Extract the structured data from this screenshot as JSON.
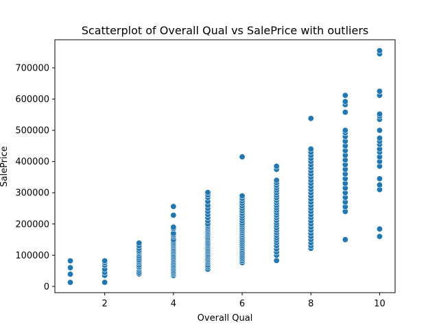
{
  "chart_data": {
    "type": "scatter",
    "title": "Scatterplot of Overall Qual vs SalePrice with outliers",
    "xlabel": "Overall Qual",
    "ylabel": "SalePrice",
    "xlim": [
      0.55,
      10.45
    ],
    "ylim": [
      -20000,
      790000
    ],
    "xticks": [
      2,
      4,
      6,
      8,
      10
    ],
    "xtick_labels": [
      "2",
      "4",
      "6",
      "8",
      "10"
    ],
    "yticks": [
      0,
      100000,
      200000,
      300000,
      400000,
      500000,
      600000,
      700000
    ],
    "ytick_labels": [
      "0",
      "100000",
      "200000",
      "300000",
      "400000",
      "500000",
      "600000",
      "700000"
    ],
    "grid": false,
    "marker_color": "#1f77b4",
    "series": [
      {
        "points": [
          [
            1,
            13000
          ],
          [
            1,
            39300
          ],
          [
            1,
            60000
          ],
          [
            1,
            82000
          ],
          [
            2,
            13100
          ],
          [
            2,
            35300
          ],
          [
            2,
            45000
          ],
          [
            2,
            55000
          ],
          [
            2,
            68000
          ],
          [
            2,
            76000
          ],
          [
            2,
            82000
          ],
          [
            3,
            40000
          ],
          [
            3,
            45000
          ],
          [
            3,
            52000
          ],
          [
            3,
            58000
          ],
          [
            3,
            62000
          ],
          [
            3,
            68000
          ],
          [
            3,
            75000
          ],
          [
            3,
            80000
          ],
          [
            3,
            85000
          ],
          [
            3,
            92000
          ],
          [
            3,
            98000
          ],
          [
            3,
            105000
          ],
          [
            3,
            110000
          ],
          [
            3,
            115000
          ],
          [
            3,
            122000
          ],
          [
            3,
            130000
          ],
          [
            3,
            139000
          ],
          [
            4,
            35000
          ],
          [
            4,
            40000
          ],
          [
            4,
            45000
          ],
          [
            4,
            50000
          ],
          [
            4,
            55000
          ],
          [
            4,
            60000
          ],
          [
            4,
            65000
          ],
          [
            4,
            70000
          ],
          [
            4,
            75000
          ],
          [
            4,
            80000
          ],
          [
            4,
            85000
          ],
          [
            4,
            90000
          ],
          [
            4,
            95000
          ],
          [
            4,
            100000
          ],
          [
            4,
            105000
          ],
          [
            4,
            110000
          ],
          [
            4,
            115000
          ],
          [
            4,
            120000
          ],
          [
            4,
            125000
          ],
          [
            4,
            130000
          ],
          [
            4,
            135000
          ],
          [
            4,
            140000
          ],
          [
            4,
            145000
          ],
          [
            4,
            150000
          ],
          [
            4,
            160000
          ],
          [
            4,
            165000
          ],
          [
            4,
            170000
          ],
          [
            4,
            185000
          ],
          [
            4,
            190000
          ],
          [
            4,
            228000
          ],
          [
            4,
            256000
          ],
          [
            5,
            55000
          ],
          [
            5,
            62000
          ],
          [
            5,
            68000
          ],
          [
            5,
            75000
          ],
          [
            5,
            80000
          ],
          [
            5,
            85000
          ],
          [
            5,
            90000
          ],
          [
            5,
            95000
          ],
          [
            5,
            100000
          ],
          [
            5,
            105000
          ],
          [
            5,
            110000
          ],
          [
            5,
            115000
          ],
          [
            5,
            120000
          ],
          [
            5,
            125000
          ],
          [
            5,
            130000
          ],
          [
            5,
            135000
          ],
          [
            5,
            140000
          ],
          [
            5,
            145000
          ],
          [
            5,
            150000
          ],
          [
            5,
            155000
          ],
          [
            5,
            160000
          ],
          [
            5,
            165000
          ],
          [
            5,
            170000
          ],
          [
            5,
            175000
          ],
          [
            5,
            180000
          ],
          [
            5,
            185000
          ],
          [
            5,
            190000
          ],
          [
            5,
            195000
          ],
          [
            5,
            200000
          ],
          [
            5,
            210000
          ],
          [
            5,
            220000
          ],
          [
            5,
            230000
          ],
          [
            5,
            240000
          ],
          [
            5,
            250000
          ],
          [
            5,
            260000
          ],
          [
            5,
            272000
          ],
          [
            5,
            285000
          ],
          [
            5,
            293000
          ],
          [
            5,
            301000
          ],
          [
            6,
            76000
          ],
          [
            6,
            82000
          ],
          [
            6,
            88000
          ],
          [
            6,
            94000
          ],
          [
            6,
            100000
          ],
          [
            6,
            106000
          ],
          [
            6,
            112000
          ],
          [
            6,
            118000
          ],
          [
            6,
            124000
          ],
          [
            6,
            130000
          ],
          [
            6,
            136000
          ],
          [
            6,
            142000
          ],
          [
            6,
            148000
          ],
          [
            6,
            154000
          ],
          [
            6,
            160000
          ],
          [
            6,
            166000
          ],
          [
            6,
            172000
          ],
          [
            6,
            178000
          ],
          [
            6,
            184000
          ],
          [
            6,
            190000
          ],
          [
            6,
            196000
          ],
          [
            6,
            202000
          ],
          [
            6,
            210000
          ],
          [
            6,
            218000
          ],
          [
            6,
            226000
          ],
          [
            6,
            234000
          ],
          [
            6,
            242000
          ],
          [
            6,
            250000
          ],
          [
            6,
            258000
          ],
          [
            6,
            266000
          ],
          [
            6,
            274000
          ],
          [
            6,
            282000
          ],
          [
            6,
            290000
          ],
          [
            6,
            415000
          ],
          [
            7,
            83000
          ],
          [
            7,
            100000
          ],
          [
            7,
            110000
          ],
          [
            7,
            120000
          ],
          [
            7,
            130000
          ],
          [
            7,
            140000
          ],
          [
            7,
            148000
          ],
          [
            7,
            156000
          ],
          [
            7,
            164000
          ],
          [
            7,
            172000
          ],
          [
            7,
            180000
          ],
          [
            7,
            188000
          ],
          [
            7,
            196000
          ],
          [
            7,
            204000
          ],
          [
            7,
            212000
          ],
          [
            7,
            220000
          ],
          [
            7,
            228000
          ],
          [
            7,
            236000
          ],
          [
            7,
            244000
          ],
          [
            7,
            252000
          ],
          [
            7,
            260000
          ],
          [
            7,
            268000
          ],
          [
            7,
            276000
          ],
          [
            7,
            284000
          ],
          [
            7,
            292000
          ],
          [
            7,
            300000
          ],
          [
            7,
            308000
          ],
          [
            7,
            316000
          ],
          [
            7,
            324000
          ],
          [
            7,
            332000
          ],
          [
            7,
            340000
          ],
          [
            7,
            375000
          ],
          [
            7,
            385000
          ],
          [
            8,
            122000
          ],
          [
            8,
            130000
          ],
          [
            8,
            140000
          ],
          [
            8,
            150000
          ],
          [
            8,
            160000
          ],
          [
            8,
            170000
          ],
          [
            8,
            180000
          ],
          [
            8,
            190000
          ],
          [
            8,
            200000
          ],
          [
            8,
            210000
          ],
          [
            8,
            220000
          ],
          [
            8,
            230000
          ],
          [
            8,
            240000
          ],
          [
            8,
            250000
          ],
          [
            8,
            260000
          ],
          [
            8,
            270000
          ],
          [
            8,
            280000
          ],
          [
            8,
            290000
          ],
          [
            8,
            300000
          ],
          [
            8,
            310000
          ],
          [
            8,
            320000
          ],
          [
            8,
            330000
          ],
          [
            8,
            340000
          ],
          [
            8,
            350000
          ],
          [
            8,
            360000
          ],
          [
            8,
            370000
          ],
          [
            8,
            380000
          ],
          [
            8,
            390000
          ],
          [
            8,
            400000
          ],
          [
            8,
            410000
          ],
          [
            8,
            420000
          ],
          [
            8,
            430000
          ],
          [
            8,
            440000
          ],
          [
            8,
            538000
          ],
          [
            9,
            150000
          ],
          [
            9,
            240000
          ],
          [
            9,
            255000
          ],
          [
            9,
            270000
          ],
          [
            9,
            285000
          ],
          [
            9,
            300000
          ],
          [
            9,
            315000
          ],
          [
            9,
            330000
          ],
          [
            9,
            345000
          ],
          [
            9,
            360000
          ],
          [
            9,
            375000
          ],
          [
            9,
            390000
          ],
          [
            9,
            405000
          ],
          [
            9,
            420000
          ],
          [
            9,
            435000
          ],
          [
            9,
            450000
          ],
          [
            9,
            465000
          ],
          [
            9,
            480000
          ],
          [
            9,
            492000
          ],
          [
            9,
            500000
          ],
          [
            9,
            558000
          ],
          [
            9,
            582000
          ],
          [
            9,
            592000
          ],
          [
            9,
            612000
          ],
          [
            10,
            160000
          ],
          [
            10,
            184000
          ],
          [
            10,
            310000
          ],
          [
            10,
            325000
          ],
          [
            10,
            345000
          ],
          [
            10,
            385000
          ],
          [
            10,
            400000
          ],
          [
            10,
            415000
          ],
          [
            10,
            430000
          ],
          [
            10,
            440000
          ],
          [
            10,
            455000
          ],
          [
            10,
            465000
          ],
          [
            10,
            475000
          ],
          [
            10,
            500000
          ],
          [
            10,
            535000
          ],
          [
            10,
            545000
          ],
          [
            10,
            552000
          ],
          [
            10,
            612000
          ],
          [
            10,
            625000
          ],
          [
            10,
            745000
          ],
          [
            10,
            755000
          ]
        ]
      }
    ]
  }
}
